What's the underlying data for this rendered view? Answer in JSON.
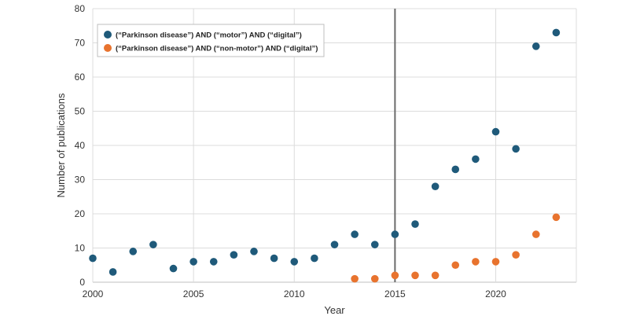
{
  "chart_data": {
    "type": "scatter",
    "xlabel": "Year",
    "ylabel": "Number of publications",
    "xlim": [
      2000,
      2024
    ],
    "ylim": [
      0,
      80
    ],
    "x_ticks": [
      2000,
      2005,
      2010,
      2015,
      2020
    ],
    "y_ticks": [
      0,
      10,
      20,
      30,
      40,
      50,
      60,
      70,
      80
    ],
    "grid": true,
    "legend_position": "top-left",
    "reference_line_x": 2015,
    "series": [
      {
        "name": "(“Parkinson disease”) AND (“motor”) AND (“digital”)",
        "color": "#1f5a7a",
        "points": [
          {
            "x": 2000,
            "y": 7
          },
          {
            "x": 2001,
            "y": 3
          },
          {
            "x": 2002,
            "y": 9
          },
          {
            "x": 2003,
            "y": 11
          },
          {
            "x": 2004,
            "y": 4
          },
          {
            "x": 2005,
            "y": 6
          },
          {
            "x": 2006,
            "y": 6
          },
          {
            "x": 2007,
            "y": 8
          },
          {
            "x": 2008,
            "y": 9
          },
          {
            "x": 2009,
            "y": 7
          },
          {
            "x": 2010,
            "y": 6
          },
          {
            "x": 2011,
            "y": 7
          },
          {
            "x": 2012,
            "y": 11
          },
          {
            "x": 2013,
            "y": 14
          },
          {
            "x": 2014,
            "y": 11
          },
          {
            "x": 2015,
            "y": 14
          },
          {
            "x": 2016,
            "y": 17
          },
          {
            "x": 2017,
            "y": 28
          },
          {
            "x": 2018,
            "y": 33
          },
          {
            "x": 2019,
            "y": 36
          },
          {
            "x": 2020,
            "y": 44
          },
          {
            "x": 2021,
            "y": 39
          },
          {
            "x": 2022,
            "y": 69
          },
          {
            "x": 2023,
            "y": 73
          }
        ]
      },
      {
        "name": "(“Parkinson disease”) AND (“non-motor”) AND (“digital”)",
        "color": "#e8732e",
        "points": [
          {
            "x": 2013,
            "y": 1
          },
          {
            "x": 2014,
            "y": 1
          },
          {
            "x": 2015,
            "y": 2
          },
          {
            "x": 2016,
            "y": 2
          },
          {
            "x": 2017,
            "y": 2
          },
          {
            "x": 2018,
            "y": 5
          },
          {
            "x": 2019,
            "y": 6
          },
          {
            "x": 2020,
            "y": 6
          },
          {
            "x": 2021,
            "y": 8
          },
          {
            "x": 2022,
            "y": 14
          },
          {
            "x": 2023,
            "y": 19
          }
        ]
      }
    ]
  }
}
